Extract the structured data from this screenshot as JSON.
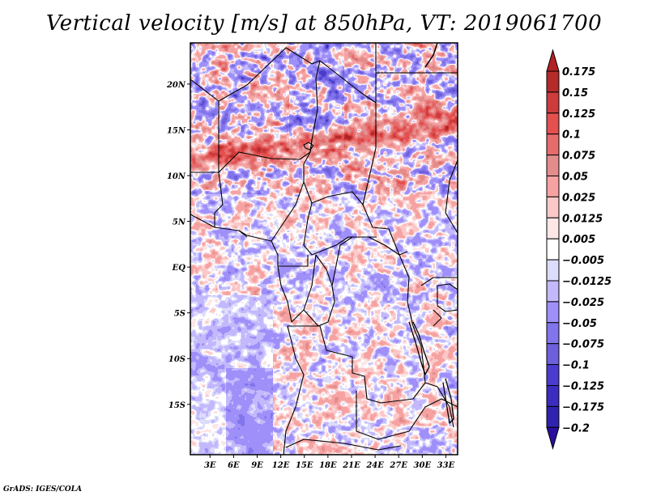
{
  "chart_data": {
    "type": "heatmap",
    "title": "Vertical velocity [m/s] at 850hPa, VT: 2019061700",
    "variable": "Vertical velocity",
    "units": "m/s",
    "level": "850hPa",
    "valid_time": "2019061700",
    "xlabel": "",
    "ylabel": "",
    "x_axis": {
      "range_deg_east": [
        0.5,
        34.5
      ],
      "ticks": [
        {
          "value": 3,
          "label": "3E"
        },
        {
          "value": 6,
          "label": "6E"
        },
        {
          "value": 9,
          "label": "9E"
        },
        {
          "value": 12,
          "label": "12E"
        },
        {
          "value": 15,
          "label": "15E"
        },
        {
          "value": 18,
          "label": "18E"
        },
        {
          "value": 21,
          "label": "21E"
        },
        {
          "value": 24,
          "label": "24E"
        },
        {
          "value": 27,
          "label": "27E"
        },
        {
          "value": 30,
          "label": "30E"
        },
        {
          "value": 33,
          "label": "33E"
        }
      ]
    },
    "y_axis": {
      "range_deg_north": [
        -20.5,
        24.5
      ],
      "ticks": [
        {
          "value": 20,
          "label": "20N"
        },
        {
          "value": 15,
          "label": "15N"
        },
        {
          "value": 10,
          "label": "10N"
        },
        {
          "value": 5,
          "label": "5N"
        },
        {
          "value": 0,
          "label": "EQ"
        },
        {
          "value": -5,
          "label": "5S"
        },
        {
          "value": -10,
          "label": "10S"
        },
        {
          "value": -15,
          "label": "15S"
        }
      ]
    },
    "colorbar": {
      "orientation": "vertical",
      "placement": "right",
      "extend": "both",
      "levels": [
        0.175,
        0.15,
        0.125,
        0.1,
        0.075,
        0.05,
        0.025,
        0.0125,
        0.005,
        -0.005,
        -0.0125,
        -0.025,
        -0.05,
        -0.075,
        -0.1,
        -0.125,
        -0.175,
        -0.2
      ],
      "level_labels": [
        "0.175",
        "0.15",
        "0.125",
        "0.1",
        "0.075",
        "0.05",
        "0.025",
        "0.0125",
        "0.005",
        "−0.005",
        "−0.0125",
        "−0.025",
        "−0.05",
        "−0.075",
        "−0.1",
        "−0.125",
        "−0.175",
        "−0.2"
      ],
      "colors_top_to_bottom": [
        "#b22222",
        "#b52a2a",
        "#cd3c3c",
        "#e45050",
        "#e66c6c",
        "#e38c8c",
        "#f6a2a2",
        "#fbc8c8",
        "#fde6e6",
        "#ffffff",
        "#dcdcfc",
        "#c3b8fc",
        "#9f8ff9",
        "#8275eb",
        "#6e60dc",
        "#4b3ccf",
        "#3c2cbf",
        "#2f22ad",
        "#2a0f9f"
      ]
    },
    "field_description": "Noisy small-scale field; strong positive (red) bands along ~12-15N across Sahel and in Sahara; negative (blue) areas over northern Chad, Atlantic near 10-15S",
    "grid": false
  },
  "footer": {
    "credit": "GrADS: IGES/COLA"
  }
}
